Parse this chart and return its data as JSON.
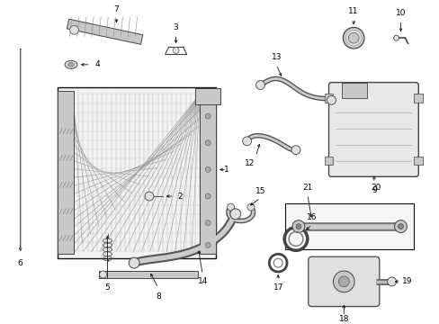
{
  "bg_color": "#ffffff",
  "fig_width": 4.89,
  "fig_height": 3.6,
  "dpi": 100,
  "line_color": "#111111",
  "part_color": "#555555",
  "fill_light": "#e0e0e0",
  "fill_mid": "#c8c8c8",
  "label_fontsize": 6.5
}
